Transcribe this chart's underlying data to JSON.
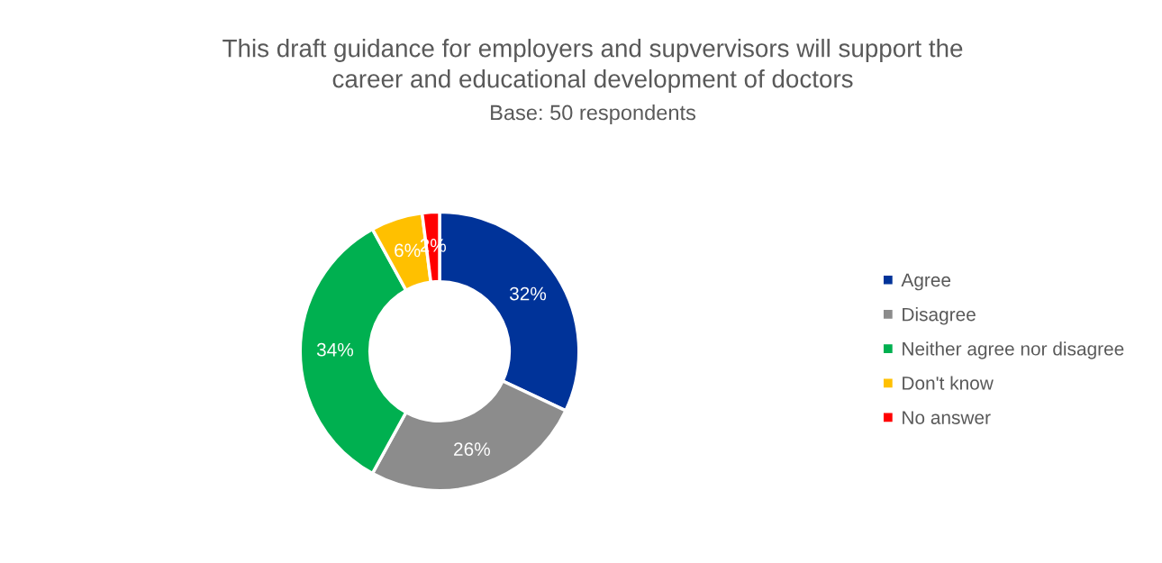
{
  "chart_data": {
    "type": "donut",
    "title": "This draft guidance for employers and supvervisors will support the\ncareer and educational development of doctors",
    "subtitle": "Base: 50 respondents",
    "categories": [
      "Agree",
      "Disagree",
      "Neither agree nor disagree",
      "Don't know",
      "No answer"
    ],
    "values": [
      32,
      26,
      34,
      6,
      2
    ],
    "colors": [
      "#003399",
      "#8c8c8c",
      "#00b050",
      "#ffc000",
      "#ff0000"
    ],
    "value_labels": [
      "32%",
      "26%",
      "34%",
      "6%",
      "2%"
    ],
    "legend": "right"
  }
}
